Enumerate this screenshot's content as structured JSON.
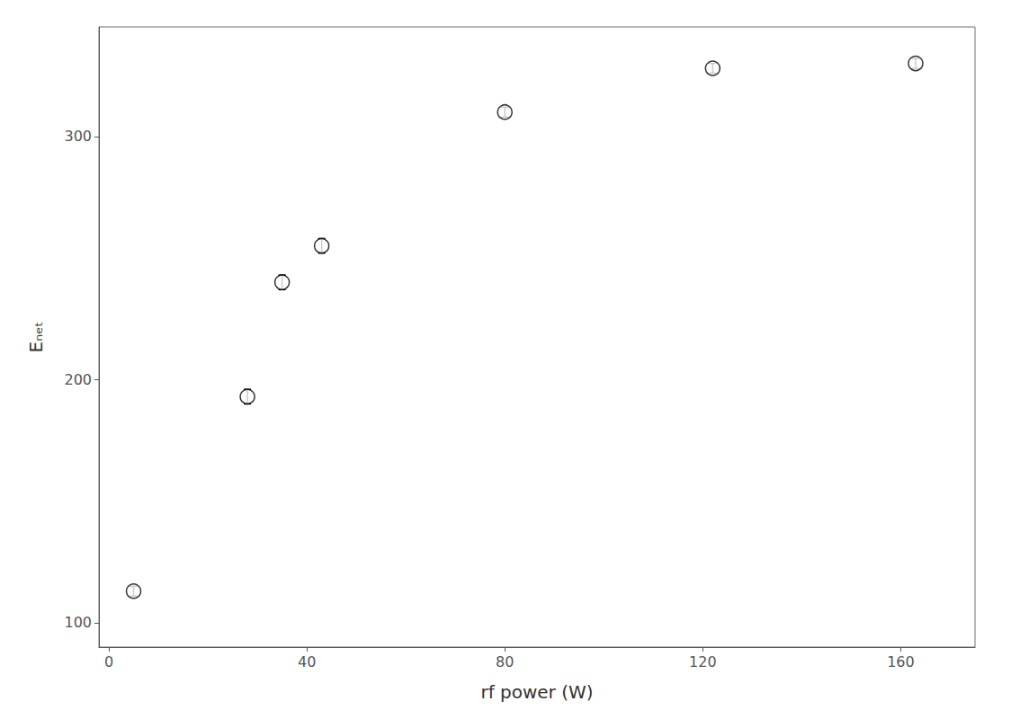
{
  "chart_data": {
    "type": "scatter",
    "xlabel": "rf power (W)",
    "ylabel": "Eₙₑₜ",
    "x": [
      5,
      28,
      35,
      43,
      80,
      122,
      163
    ],
    "values": [
      113,
      193,
      240,
      255,
      310,
      328,
      330
    ],
    "yerr": [
      2,
      3,
      3,
      3,
      2,
      2,
      2
    ],
    "xlim": [
      -2,
      175
    ],
    "ylim": [
      90,
      345
    ],
    "xticks": [
      0,
      40,
      80,
      120,
      160
    ],
    "yticks": [
      100,
      200,
      300
    ],
    "marker": "circle",
    "color": "black",
    "grid": false
  }
}
